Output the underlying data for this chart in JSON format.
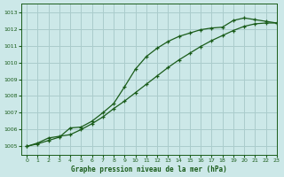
{
  "title": "Graphe pression niveau de la mer (hPa)",
  "bg_color": "#cce8e8",
  "grid_color": "#aacccc",
  "line_color": "#1a5c1a",
  "xlim": [
    -0.5,
    23
  ],
  "ylim": [
    1004.5,
    1013.5
  ],
  "yticks": [
    1005,
    1006,
    1007,
    1008,
    1009,
    1010,
    1011,
    1012,
    1013
  ],
  "xticks": [
    0,
    1,
    2,
    3,
    4,
    5,
    6,
    7,
    8,
    9,
    10,
    11,
    12,
    13,
    14,
    15,
    16,
    17,
    18,
    19,
    20,
    21,
    22,
    23
  ],
  "line1_x": [
    0,
    1,
    2,
    3,
    4,
    5,
    6,
    7,
    8,
    9,
    10,
    11,
    12,
    13,
    14,
    15,
    16,
    17,
    18,
    19,
    20,
    21,
    22,
    23
  ],
  "line1_y": [
    1005.0,
    1005.15,
    1005.35,
    1005.55,
    1006.1,
    1006.15,
    1006.5,
    1007.0,
    1007.55,
    1008.55,
    1009.6,
    1010.35,
    1010.85,
    1011.25,
    1011.55,
    1011.75,
    1011.95,
    1012.05,
    1012.1,
    1012.5,
    1012.65,
    1012.55,
    1012.45,
    1012.35
  ],
  "line2_x": [
    0,
    1,
    2,
    3,
    4,
    5,
    6,
    7,
    8,
    9,
    10,
    11,
    12,
    13,
    14,
    15,
    16,
    17,
    18,
    19,
    20,
    21,
    22,
    23
  ],
  "line2_y": [
    1005.0,
    1005.2,
    1005.5,
    1005.6,
    1005.7,
    1006.0,
    1006.35,
    1006.75,
    1007.25,
    1007.7,
    1008.2,
    1008.7,
    1009.2,
    1009.7,
    1010.15,
    1010.55,
    1010.95,
    1011.3,
    1011.6,
    1011.9,
    1012.15,
    1012.3,
    1012.35,
    1012.35
  ]
}
